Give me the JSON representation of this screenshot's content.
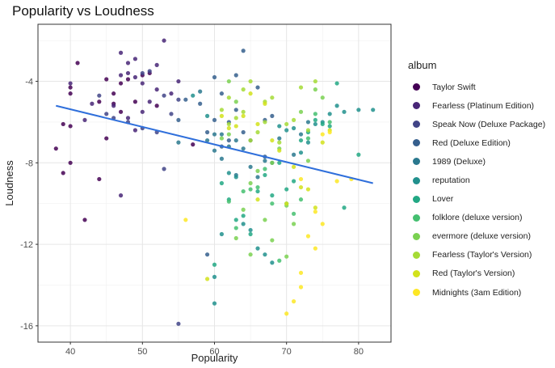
{
  "chart_data": {
    "type": "scatter",
    "title": "Popularity vs Loudness",
    "xlabel": "Popularity",
    "ylabel": "Loudness",
    "xlim": [
      35.5,
      84.5
    ],
    "ylim": [
      -16.8,
      -1.2
    ],
    "x_ticks": [
      40,
      50,
      60,
      70,
      80
    ],
    "y_ticks": [
      -16,
      -12,
      -8,
      -4
    ],
    "grid": true,
    "legend_title": "album",
    "legend_position": "right",
    "trend_line": {
      "x": [
        38,
        82
      ],
      "y": [
        -5.2,
        -9.0
      ],
      "color": "#2f6fdb"
    },
    "series": [
      {
        "name": "Taylor Swift",
        "color": "#440154",
        "points": [
          [
            38,
            -7.3
          ],
          [
            39,
            -6.1
          ],
          [
            39,
            -8.5
          ],
          [
            40,
            -4.3
          ],
          [
            40,
            -4.6
          ],
          [
            40,
            -8.0
          ],
          [
            40,
            -6.2
          ],
          [
            41,
            -3.1
          ],
          [
            42,
            -10.8
          ],
          [
            44,
            -8.8
          ],
          [
            44,
            -5.0
          ],
          [
            45,
            -3.9
          ],
          [
            45,
            -6.8
          ],
          [
            46,
            -4.6
          ],
          [
            46,
            -5.1
          ],
          [
            47,
            -5.5
          ],
          [
            47,
            -4.1
          ],
          [
            48,
            -3.9
          ],
          [
            49,
            -5.0
          ],
          [
            50,
            -3.7
          ],
          [
            51,
            -3.6
          ],
          [
            52,
            -5.2
          ],
          [
            57,
            -7.1
          ]
        ]
      },
      {
        "name": "Fearless (Platinum Edition)",
        "color": "#482677",
        "points": [
          [
            40,
            -4.1
          ],
          [
            42,
            -5.9
          ],
          [
            43,
            -5.1
          ],
          [
            46,
            -5.2
          ],
          [
            47,
            -2.6
          ],
          [
            47,
            -3.7
          ],
          [
            48,
            -3.1
          ],
          [
            48,
            -3.6
          ],
          [
            48,
            -5.8
          ],
          [
            49,
            -2.9
          ],
          [
            49,
            -3.8
          ],
          [
            50,
            -4.1
          ],
          [
            50,
            -5.5
          ],
          [
            51,
            -5.0
          ],
          [
            52,
            -3.2
          ],
          [
            52,
            -4.4
          ],
          [
            53,
            -2.0
          ],
          [
            54,
            -4.6
          ],
          [
            55,
            -4.0
          ],
          [
            47,
            -9.6
          ],
          [
            49,
            -6.4
          ]
        ]
      },
      {
        "name": "Speak Now (Deluxe Package)",
        "color": "#414487",
        "points": [
          [
            44,
            -4.7
          ],
          [
            45,
            -5.6
          ],
          [
            46,
            -5.8
          ],
          [
            48,
            -6.0
          ],
          [
            50,
            -3.6
          ],
          [
            50,
            -6.3
          ],
          [
            51,
            -3.5
          ],
          [
            52,
            -6.5
          ],
          [
            53,
            -4.7
          ],
          [
            53,
            -8.3
          ],
          [
            54,
            -5.6
          ],
          [
            55,
            -4.9
          ],
          [
            55,
            -15.9
          ]
        ]
      },
      {
        "name": "Red (Deluxe Edition)",
        "color": "#355f8d",
        "points": [
          [
            55,
            -5.9
          ],
          [
            56,
            -4.9
          ],
          [
            58,
            -5.1
          ],
          [
            59,
            -6.5
          ],
          [
            59,
            -12.5
          ],
          [
            60,
            -3.8
          ],
          [
            60,
            -5.9
          ],
          [
            61,
            -4.6
          ],
          [
            61,
            -7.2
          ],
          [
            62,
            -6.0
          ],
          [
            62,
            -6.9
          ],
          [
            63,
            -5.4
          ],
          [
            63,
            -3.7
          ],
          [
            64,
            -2.5
          ],
          [
            64,
            -6.5
          ],
          [
            65,
            -6.9
          ],
          [
            66,
            -4.3
          ],
          [
            67,
            -5.9
          ],
          [
            67,
            -7.7
          ],
          [
            68,
            -5.7
          ]
        ]
      },
      {
        "name": "1989 (Deluxe)",
        "color": "#2a788e",
        "points": [
          [
            55,
            -7.0
          ],
          [
            58,
            -4.5
          ],
          [
            59,
            -6.9
          ],
          [
            60,
            -6.6
          ],
          [
            60,
            -7.4
          ],
          [
            61,
            -6.6
          ],
          [
            61,
            -7.8
          ],
          [
            62,
            -7.2
          ],
          [
            63,
            -6.9
          ],
          [
            63,
            -8.6
          ],
          [
            64,
            -7.3
          ],
          [
            65,
            -8.2
          ],
          [
            66,
            -8.7
          ],
          [
            67,
            -7.9
          ],
          [
            68,
            -8.0
          ],
          [
            69,
            -6.8
          ],
          [
            71,
            -7.6
          ],
          [
            72,
            -6.6
          ],
          [
            73,
            -6.0
          ]
        ]
      },
      {
        "name": "reputation",
        "color": "#21908d",
        "points": [
          [
            57,
            -4.7
          ],
          [
            59,
            -5.7
          ],
          [
            60,
            -13.6
          ],
          [
            60,
            -14.9
          ],
          [
            61,
            -11.5
          ],
          [
            62,
            -8.5
          ],
          [
            63,
            -8.7
          ],
          [
            64,
            -11.0
          ],
          [
            65,
            -11.3
          ],
          [
            66,
            -12.2
          ],
          [
            67,
            -12.5
          ],
          [
            68,
            -12.9
          ],
          [
            69,
            -6.2
          ],
          [
            70,
            -6.4
          ],
          [
            71,
            -6.3
          ],
          [
            72,
            -7.5
          ],
          [
            73,
            -7.0
          ],
          [
            74,
            -6.1
          ],
          [
            75,
            -6.0
          ],
          [
            76,
            -5.6
          ],
          [
            77,
            -5.2
          ],
          [
            78,
            -5.5
          ],
          [
            80,
            -5.4
          ],
          [
            82,
            -5.4
          ]
        ]
      },
      {
        "name": "Lover",
        "color": "#22a884",
        "points": [
          [
            60,
            -13.0
          ],
          [
            61,
            -9.0
          ],
          [
            62,
            -9.8
          ],
          [
            63,
            -10.8
          ],
          [
            64,
            -10.6
          ],
          [
            65,
            -11.5
          ],
          [
            66,
            -9.4
          ],
          [
            67,
            -8.6
          ],
          [
            68,
            -9.6
          ],
          [
            69,
            -8.0
          ],
          [
            70,
            -9.3
          ],
          [
            71,
            -8.9
          ],
          [
            72,
            -6.9
          ],
          [
            73,
            -6.5
          ],
          [
            74,
            -5.9
          ],
          [
            75,
            -6.1
          ],
          [
            76,
            -6.2
          ],
          [
            77,
            -4.1
          ],
          [
            78,
            -10.2
          ],
          [
            80,
            -7.6
          ]
        ]
      },
      {
        "name": "folklore (deluxe version)",
        "color": "#44bf70",
        "points": [
          [
            62,
            -9.9
          ],
          [
            63,
            -11.2
          ],
          [
            64,
            -9.4
          ],
          [
            65,
            -9.3
          ],
          [
            66,
            -9.2
          ],
          [
            67,
            -8.3
          ],
          [
            68,
            -10.0
          ],
          [
            69,
            -12.8
          ],
          [
            70,
            -10.0
          ],
          [
            71,
            -10.5
          ],
          [
            72,
            -9.8
          ],
          [
            73,
            -6.8
          ],
          [
            74,
            -5.6
          ],
          [
            76,
            -6.0
          ]
        ]
      },
      {
        "name": "evermore (deluxe version)",
        "color": "#7ad151",
        "points": [
          [
            61,
            -6.8
          ],
          [
            62,
            -4.0
          ],
          [
            62,
            -6.6
          ],
          [
            63,
            -5.0
          ],
          [
            63,
            -11.7
          ],
          [
            64,
            -10.3
          ],
          [
            65,
            -9.0
          ],
          [
            65,
            -12.5
          ],
          [
            66,
            -8.4
          ],
          [
            67,
            -10.8
          ],
          [
            68,
            -8.0
          ],
          [
            68,
            -11.8
          ],
          [
            69,
            -7.3
          ],
          [
            70,
            -10.1
          ],
          [
            70,
            -12.6
          ],
          [
            71,
            -11.0
          ],
          [
            72,
            -5.5
          ],
          [
            73,
            -7.9
          ],
          [
            74,
            -4.4
          ],
          [
            75,
            -4.8
          ]
        ]
      },
      {
        "name": "Fearless (Taylor's Version)",
        "color": "#a5db36",
        "points": [
          [
            61,
            -5.4
          ],
          [
            62,
            -4.8
          ],
          [
            62,
            -6.1
          ],
          [
            63,
            -5.8
          ],
          [
            64,
            -5.5
          ],
          [
            64,
            -4.4
          ],
          [
            65,
            -4.0
          ],
          [
            65,
            -6.9
          ],
          [
            66,
            -6.5
          ],
          [
            67,
            -6.0
          ],
          [
            67,
            -5.0
          ],
          [
            68,
            -4.8
          ],
          [
            69,
            -7.0
          ],
          [
            70,
            -6.1
          ],
          [
            71,
            -5.9
          ],
          [
            72,
            -4.3
          ],
          [
            73,
            -6.4
          ],
          [
            74,
            -4.0
          ]
        ]
      },
      {
        "name": "Red (Taylor's Version)",
        "color": "#d2e21b",
        "points": [
          [
            59,
            -13.7
          ],
          [
            61,
            -5.7
          ],
          [
            62,
            -6.3
          ],
          [
            63,
            -6.2
          ],
          [
            64,
            -5.7
          ],
          [
            65,
            -4.6
          ],
          [
            66,
            -6.1
          ],
          [
            66,
            -9.8
          ],
          [
            67,
            -5.1
          ],
          [
            68,
            -6.9
          ],
          [
            69,
            -7.4
          ],
          [
            70,
            -10.0
          ],
          [
            71,
            -8.2
          ],
          [
            72,
            -9.2
          ],
          [
            73,
            -9.3
          ],
          [
            74,
            -10.2
          ],
          [
            75,
            -7.0
          ],
          [
            76,
            -6.4
          ]
        ]
      },
      {
        "name": "Midnights (3am Edition)",
        "color": "#fde725",
        "points": [
          [
            56,
            -10.8
          ],
          [
            70,
            -15.4
          ],
          [
            71,
            -14.8
          ],
          [
            72,
            -14.1
          ],
          [
            72,
            -13.4
          ],
          [
            72,
            -8.8
          ],
          [
            73,
            -11.6
          ],
          [
            74,
            -10.4
          ],
          [
            74,
            -12.2
          ],
          [
            75,
            -6.6
          ],
          [
            76,
            -6.5
          ],
          [
            77,
            -8.9
          ],
          [
            79,
            -8.8
          ],
          [
            75,
            -11.0
          ]
        ]
      }
    ]
  }
}
